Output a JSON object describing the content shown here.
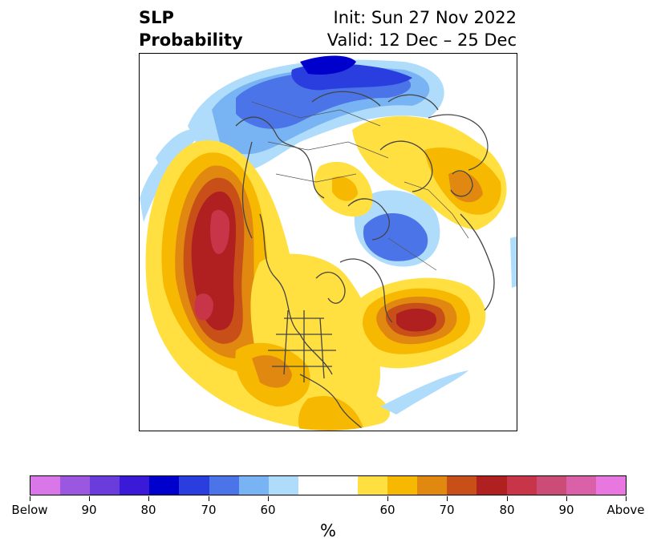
{
  "title": {
    "line1_left": "SLP",
    "line2_left": "Probability",
    "line1_right": "Init: Sun 27 Nov 2022",
    "line2_right": "Valid: 12 Dec – 25 Dec"
  },
  "colorbar": {
    "colors": [
      "#d977e8",
      "#9b57e0",
      "#6a3cdc",
      "#3a1ad6",
      "#0000cc",
      "#2a3ee0",
      "#4b74e8",
      "#78b4f4",
      "#aedcfa",
      "#ffffff",
      "#ffe040",
      "#f6b800",
      "#e08810",
      "#c85018",
      "#b02020",
      "#c83448",
      "#cc4c78",
      "#da60a8",
      "#e878e0"
    ],
    "tick_labels": [
      "Below",
      "90",
      "80",
      "70",
      "60",
      "60",
      "70",
      "80",
      "90",
      "Above"
    ],
    "units": "%"
  }
}
